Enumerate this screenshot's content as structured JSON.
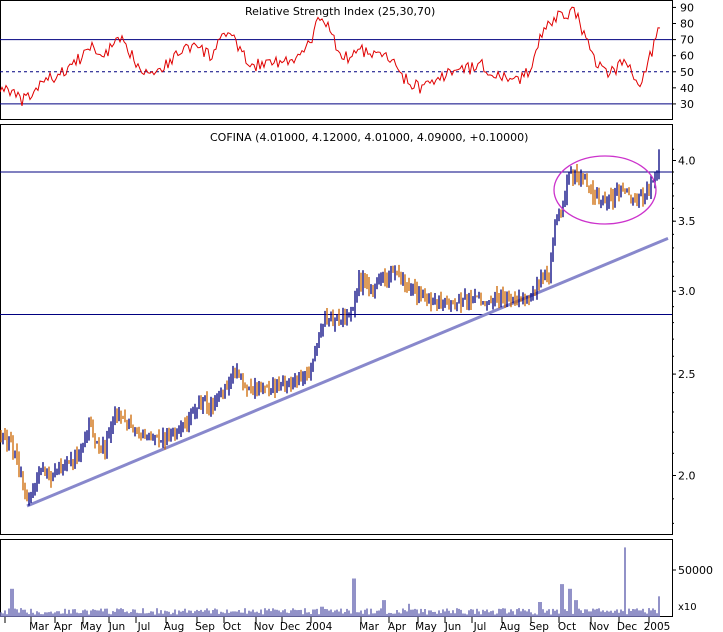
{
  "chart_data": {
    "type": "candlestick",
    "title": "COFINA (4.01000, 4.12000, 4.01000, 4.09000, +0.10000)",
    "indicator_title": "Relative Strength Index (25,30,70)",
    "volume_multiplier_label": "x10",
    "months": [
      "Mar",
      "Apr",
      "May",
      "Jun",
      "Jul",
      "Aug",
      "Sep",
      "Oct",
      "Nov",
      "Dec",
      "2004",
      "Mar",
      "Apr",
      "May",
      "Jun",
      "Jul",
      "Aug",
      "Sep",
      "Oct",
      "Nov",
      "Dec",
      "2005"
    ],
    "price_axis": {
      "ticks": [
        "2.0",
        "2.5",
        "3.0",
        "3.5",
        "4.0"
      ],
      "ylim": [
        1.75,
        4.2
      ],
      "log_scale": true
    },
    "rsi_axis": {
      "ticks": [
        "30",
        "40",
        "50",
        "60",
        "70",
        "80",
        "90"
      ],
      "ylim": [
        20,
        94
      ]
    },
    "volume_axis": {
      "ticks": [
        "50000"
      ],
      "ylim": [
        0,
        80000
      ]
    },
    "price_lines": [
      3.9,
      2.85
    ],
    "rsi_lines": {
      "upper": 70,
      "lower": 30,
      "mid": 50
    },
    "trendline": {
      "from": [
        "Feb 2003",
        1.87
      ],
      "to": [
        "Jan 2005",
        3.37
      ]
    },
    "price_path": [
      [
        0,
        2.19
      ],
      [
        8,
        2.17
      ],
      [
        18,
        2.05
      ],
      [
        25,
        1.9
      ],
      [
        32,
        1.92
      ],
      [
        40,
        2.02
      ],
      [
        52,
        2.0
      ],
      [
        62,
        2.05
      ],
      [
        72,
        2.06
      ],
      [
        82,
        2.12
      ],
      [
        90,
        2.25
      ],
      [
        95,
        2.15
      ],
      [
        105,
        2.13
      ],
      [
        115,
        2.27
      ],
      [
        125,
        2.26
      ],
      [
        135,
        2.22
      ],
      [
        145,
        2.19
      ],
      [
        155,
        2.18
      ],
      [
        165,
        2.17
      ],
      [
        175,
        2.2
      ],
      [
        185,
        2.24
      ],
      [
        195,
        2.3
      ],
      [
        205,
        2.36
      ],
      [
        215,
        2.32
      ],
      [
        225,
        2.43
      ],
      [
        235,
        2.5
      ],
      [
        245,
        2.44
      ],
      [
        255,
        2.42
      ],
      [
        265,
        2.43
      ],
      [
        275,
        2.44
      ],
      [
        285,
        2.44
      ],
      [
        295,
        2.46
      ],
      [
        305,
        2.48
      ],
      [
        312,
        2.52
      ],
      [
        318,
        2.72
      ],
      [
        325,
        2.83
      ],
      [
        335,
        2.82
      ],
      [
        345,
        2.83
      ],
      [
        352,
        2.86
      ],
      [
        358,
        3.07
      ],
      [
        365,
        3.05
      ],
      [
        372,
        2.96
      ],
      [
        380,
        3.1
      ],
      [
        388,
        3.08
      ],
      [
        395,
        3.12
      ],
      [
        405,
        3.06
      ],
      [
        415,
        3.0
      ],
      [
        425,
        2.94
      ],
      [
        435,
        2.92
      ],
      [
        445,
        2.92
      ],
      [
        455,
        2.93
      ],
      [
        465,
        2.94
      ],
      [
        475,
        2.96
      ],
      [
        485,
        2.94
      ],
      [
        495,
        2.97
      ],
      [
        502,
        2.95
      ],
      [
        510,
        2.92
      ],
      [
        520,
        2.94
      ],
      [
        530,
        2.98
      ],
      [
        538,
        3.05
      ],
      [
        545,
        3.1
      ],
      [
        550,
        3.12
      ],
      [
        553,
        3.35
      ],
      [
        558,
        3.55
      ],
      [
        563,
        3.65
      ],
      [
        568,
        3.85
      ],
      [
        575,
        3.88
      ],
      [
        585,
        3.82
      ],
      [
        595,
        3.72
      ],
      [
        600,
        3.6
      ],
      [
        605,
        3.67
      ],
      [
        615,
        3.7
      ],
      [
        625,
        3.73
      ],
      [
        635,
        3.71
      ],
      [
        642,
        3.68
      ],
      [
        648,
        3.74
      ],
      [
        655,
        3.84
      ],
      [
        660,
        4.09
      ]
    ],
    "rsi_path": [
      [
        0,
        40
      ],
      [
        10,
        39
      ],
      [
        20,
        32
      ],
      [
        30,
        34
      ],
      [
        40,
        42
      ],
      [
        50,
        46
      ],
      [
        60,
        48
      ],
      [
        70,
        54
      ],
      [
        80,
        58
      ],
      [
        90,
        66
      ],
      [
        100,
        60
      ],
      [
        110,
        64
      ],
      [
        120,
        70
      ],
      [
        130,
        62
      ],
      [
        140,
        53
      ],
      [
        150,
        50
      ],
      [
        160,
        52
      ],
      [
        170,
        56
      ],
      [
        180,
        63
      ],
      [
        190,
        66
      ],
      [
        200,
        64
      ],
      [
        210,
        60
      ],
      [
        220,
        68
      ],
      [
        230,
        76
      ],
      [
        240,
        62
      ],
      [
        250,
        55
      ],
      [
        260,
        54
      ],
      [
        270,
        58
      ],
      [
        280,
        56
      ],
      [
        290,
        56
      ],
      [
        300,
        60
      ],
      [
        310,
        67
      ],
      [
        320,
        85
      ],
      [
        330,
        77
      ],
      [
        340,
        60
      ],
      [
        350,
        58
      ],
      [
        360,
        66
      ],
      [
        370,
        58
      ],
      [
        380,
        61
      ],
      [
        390,
        58
      ],
      [
        400,
        48
      ],
      [
        410,
        43
      ],
      [
        420,
        40
      ],
      [
        430,
        42
      ],
      [
        440,
        45
      ],
      [
        450,
        50
      ],
      [
        460,
        53
      ],
      [
        470,
        52
      ],
      [
        480,
        55
      ],
      [
        490,
        50
      ],
      [
        500,
        48
      ],
      [
        510,
        43
      ],
      [
        520,
        45
      ],
      [
        530,
        52
      ],
      [
        540,
        72
      ],
      [
        548,
        78
      ],
      [
        555,
        83
      ],
      [
        565,
        86
      ],
      [
        575,
        88
      ],
      [
        585,
        72
      ],
      [
        595,
        58
      ],
      [
        605,
        48
      ],
      [
        615,
        52
      ],
      [
        625,
        55
      ],
      [
        635,
        48
      ],
      [
        642,
        43
      ],
      [
        650,
        60
      ],
      [
        655,
        68
      ],
      [
        660,
        80
      ]
    ],
    "volume_bars": [
      [
        12,
        30000
      ],
      [
        45,
        5000
      ],
      [
        97,
        7000
      ],
      [
        103,
        6000
      ],
      [
        140,
        4000
      ],
      [
        234,
        6000
      ],
      [
        314,
        8000
      ],
      [
        322,
        11000
      ],
      [
        354,
        41000
      ],
      [
        384,
        18000
      ],
      [
        409,
        14000
      ],
      [
        430,
        7000
      ],
      [
        540,
        16000
      ],
      [
        562,
        35000
      ],
      [
        570,
        30000
      ],
      [
        576,
        18000
      ],
      [
        590,
        6000
      ],
      [
        625,
        74000
      ],
      [
        640,
        7000
      ],
      [
        660,
        22000
      ]
    ],
    "highlight": {
      "shape": "ellipse",
      "around": "Oct 2004 – Jan 2005 consolidation near 3.7"
    },
    "colors": {
      "up_bar": "#000080",
      "down_bar": "#cc6600",
      "rsi_line": "#e00000",
      "level_line": "#000080",
      "trendline": "#8888cc",
      "volume": "#7777bb",
      "ellipse": "#cc33cc"
    }
  }
}
